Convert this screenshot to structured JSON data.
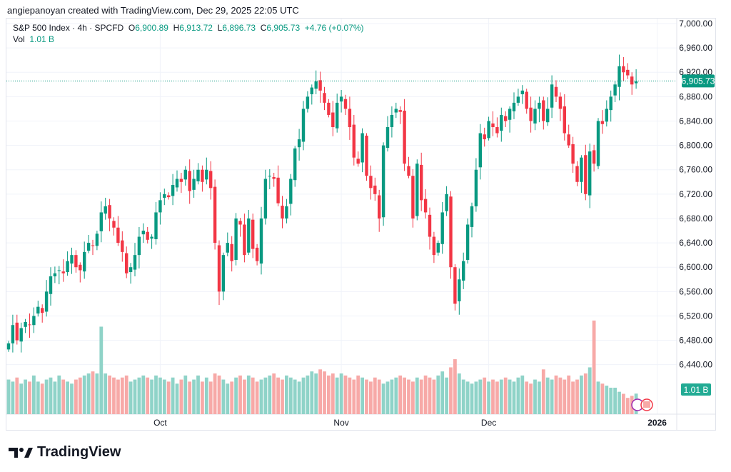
{
  "credit": "angiepanoyan created with TradingView.com, Dec 29, 2025 22:05 UTC",
  "legend": {
    "symbol": "S&P 500 Index · 4h · SPCFD",
    "o_label": "O",
    "o": "6,900.89",
    "h_label": "H",
    "h": "6,913.72",
    "l_label": "L",
    "l": "6,896.73",
    "c_label": "C",
    "c": "6,905.73",
    "change": "+4.76 (+0.07%)",
    "vol_label": "Vol",
    "vol": "1.01 B"
  },
  "logo": "TradingView",
  "colors": {
    "up": "#089981",
    "down": "#f23645",
    "vol_up": "#8fd3c8",
    "vol_down": "#f7a9a7"
  },
  "chart_data": {
    "type": "candlestick",
    "title": "S&P 500 Index · 4h · SPCFD",
    "ylim": [
      6400,
      7000
    ],
    "y_ticks": [
      "7,000.00",
      "6,960.00",
      "6,920.00",
      "6,880.00",
      "6,840.00",
      "6,800.00",
      "6,760.00",
      "6,720.00",
      "6,680.00",
      "6,640.00",
      "6,600.00",
      "6,560.00",
      "6,520.00",
      "6,480.00",
      "6,440.00"
    ],
    "x_ticks": [
      {
        "label": "Oct",
        "index": 36
      },
      {
        "label": "Nov",
        "index": 79
      },
      {
        "label": "Dec",
        "index": 114
      },
      {
        "label": "2026",
        "index": 154
      }
    ],
    "last_price_label": "6,905.73",
    "last_volume_label": "1.01 B",
    "first_open": 6465,
    "closes": [
      6475,
      6505,
      6480,
      6500,
      6510,
      6505,
      6520,
      6535,
      6525,
      6560,
      6585,
      6590,
      6595,
      6590,
      6610,
      6620,
      6600,
      6595,
      6625,
      6640,
      6635,
      6655,
      6690,
      6700,
      6680,
      6665,
      6640,
      6625,
      6590,
      6600,
      6620,
      6650,
      6660,
      6645,
      6650,
      6690,
      6710,
      6720,
      6715,
      6735,
      6745,
      6740,
      6760,
      6725,
      6745,
      6760,
      6740,
      6760,
      6730,
      6640,
      6560,
      6620,
      6640,
      6610,
      6680,
      6670,
      6620,
      6680,
      6630,
      6610,
      6680,
      6745,
      6750,
      6745,
      6705,
      6680,
      6700,
      6745,
      6795,
      6810,
      6860,
      6880,
      6895,
      6905,
      6890,
      6870,
      6850,
      6830,
      6870,
      6880,
      6860,
      6830,
      6780,
      6770,
      6820,
      6750,
      6730,
      6720,
      6680,
      6800,
      6830,
      6850,
      6860,
      6855,
      6770,
      6750,
      6680,
      6770,
      6710,
      6690,
      6650,
      6620,
      6640,
      6690,
      6720,
      6600,
      6540,
      6580,
      6610,
      6670,
      6700,
      6760,
      6820,
      6810,
      6840,
      6830,
      6820,
      6850,
      6840,
      6860,
      6870,
      6880,
      6890,
      6860,
      6840,
      6860,
      6870,
      6840,
      6860,
      6900,
      6880,
      6860,
      6820,
      6800,
      6770,
      6740,
      6780,
      6720,
      6790,
      6770,
      6840,
      6835,
      6860,
      6880,
      6900,
      6930,
      6920,
      6915,
      6900,
      6905
    ],
    "volumes_b": [
      1.7,
      1.6,
      1.8,
      1.5,
      1.7,
      1.6,
      1.9,
      1.6,
      1.5,
      1.7,
      1.8,
      1.6,
      1.9,
      1.7,
      1.6,
      1.5,
      1.7,
      1.8,
      1.9,
      2.0,
      2.1,
      2.0,
      4.3,
      2.0,
      1.9,
      1.8,
      1.7,
      1.8,
      1.9,
      1.6,
      1.7,
      1.8,
      1.9,
      1.8,
      1.7,
      1.9,
      1.8,
      1.7,
      1.6,
      1.8,
      1.5,
      1.7,
      1.9,
      1.6,
      1.7,
      1.9,
      1.6,
      1.8,
      1.6,
      2.0,
      1.9,
      1.7,
      1.5,
      1.6,
      1.8,
      1.9,
      1.7,
      1.9,
      1.8,
      1.6,
      1.7,
      1.8,
      1.9,
      2.0,
      1.8,
      1.7,
      1.9,
      1.8,
      1.7,
      1.6,
      1.8,
      1.9,
      2.1,
      2.0,
      2.2,
      2.1,
      1.9,
      2.0,
      1.8,
      2.0,
      1.9,
      1.8,
      1.7,
      1.9,
      1.8,
      1.7,
      1.6,
      1.8,
      1.7,
      1.5,
      1.6,
      1.7,
      1.8,
      1.9,
      1.8,
      1.7,
      1.6,
      1.8,
      1.7,
      1.9,
      1.8,
      1.7,
      1.9,
      2.1,
      1.8,
      2.3,
      2.7,
      2.0,
      1.7,
      1.6,
      1.5,
      1.6,
      1.7,
      1.8,
      1.6,
      1.7,
      1.6,
      1.7,
      1.8,
      1.7,
      1.6,
      1.8,
      1.9,
      1.6,
      1.5,
      1.7,
      1.6,
      2.2,
      1.8,
      1.7,
      1.9,
      1.8,
      1.7,
      1.9,
      1.6,
      1.7,
      1.9,
      2.0,
      2.3,
      4.6,
      1.6,
      1.5,
      1.4,
      1.3,
      1.3,
      1.1,
      1.0,
      0.8,
      0.9,
      1.01
    ]
  }
}
